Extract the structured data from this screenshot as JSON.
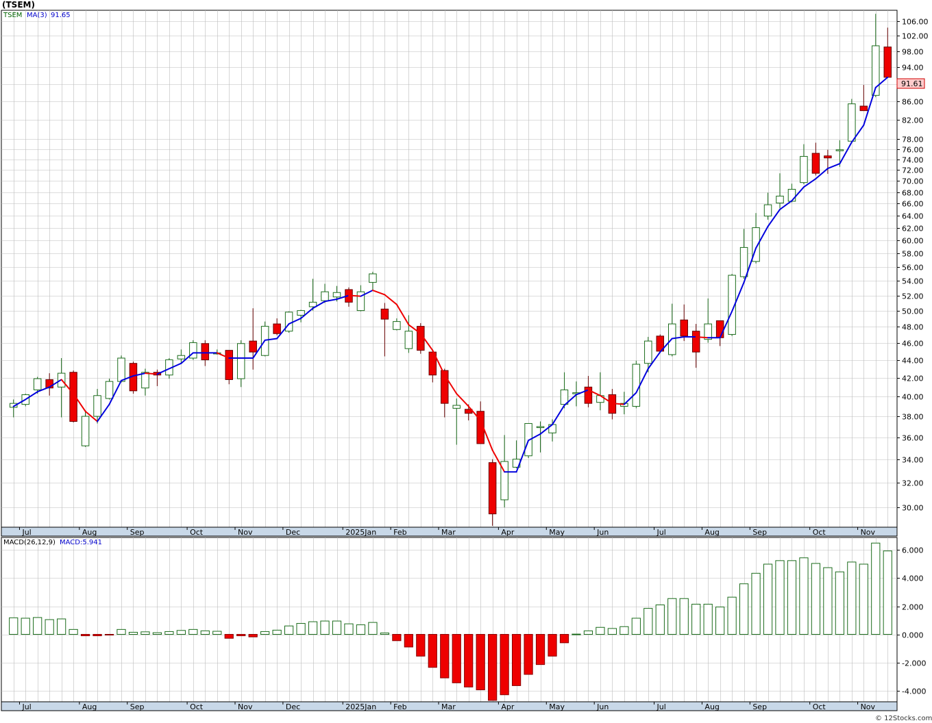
{
  "header": {
    "title": "(TSEM)",
    "price_legend_symbol": "TSEM",
    "price_legend_ma": "MA(3)",
    "price_legend_ma_value": "91.65",
    "macd_legend_name": "MACD(26,12,9)",
    "macd_legend_value": "MACD:5.941",
    "last_price_badge": "91.61",
    "watermark": "© 12Stocks.com"
  },
  "colors": {
    "up_body": "#ffffff",
    "up_border": "#1a6b1a",
    "down_body": "#ee0000",
    "ma_up": "#0000dd",
    "ma_down": "#ee0000",
    "grid": "#bbbbbb",
    "axis_band": "#c8d8e8",
    "badge_bg": "#ffcccc",
    "legend_symbol": "#006400",
    "legend_ma": "#0000cc"
  },
  "chart_data": [
    {
      "type": "candlestick",
      "title": "(TSEM)",
      "frequency": "weekly",
      "scale": "log",
      "ylim": [
        28.5,
        109
      ],
      "y_ticks": [
        30,
        32,
        34,
        36,
        38,
        40,
        42,
        44,
        46,
        48,
        50,
        52,
        54,
        56,
        58,
        60,
        62,
        64,
        66,
        68,
        70,
        72,
        74,
        76,
        78,
        82,
        86,
        90,
        94,
        98,
        102,
        106
      ],
      "y_tick_labels": [
        "30.00",
        "32.00",
        "34.00",
        "36.00",
        "38.00",
        "40.00",
        "42.00",
        "44.00",
        "46.00",
        "48.00",
        "50.00",
        "52.00",
        "54.00",
        "56.00",
        "58.00",
        "60.00",
        "62.00",
        "64.00",
        "66.00",
        "68.00",
        "70.00",
        "72.00",
        "74.00",
        "76.00",
        "78.00",
        "82.00",
        "86.00",
        "90.00",
        "94.00",
        "98.00",
        "102.00",
        "106.00"
      ],
      "x_labels": [
        {
          "label": "Jul",
          "index": 1
        },
        {
          "label": "Aug",
          "index": 6
        },
        {
          "label": "Sep",
          "index": 10
        },
        {
          "label": "Oct",
          "index": 15
        },
        {
          "label": "Nov",
          "index": 19
        },
        {
          "label": "Dec",
          "index": 23
        },
        {
          "label": "2025Jan",
          "index": 28
        },
        {
          "label": "Feb",
          "index": 32
        },
        {
          "label": "Mar",
          "index": 36
        },
        {
          "label": "Apr",
          "index": 41
        },
        {
          "label": "May",
          "index": 45
        },
        {
          "label": "Jun",
          "index": 49
        },
        {
          "label": "Jul",
          "index": 54
        },
        {
          "label": "Aug",
          "index": 58
        },
        {
          "label": "Sep",
          "index": 62
        },
        {
          "label": "Oct",
          "index": 67
        },
        {
          "label": "Nov",
          "index": 71
        }
      ],
      "series_ohlc": [
        {
          "o": 38.9,
          "h": 39.7,
          "l": 37.9,
          "c": 39.3
        },
        {
          "o": 39.2,
          "h": 40.3,
          "l": 39.0,
          "c": 40.2
        },
        {
          "o": 40.7,
          "h": 42.1,
          "l": 40.3,
          "c": 41.9
        },
        {
          "o": 41.8,
          "h": 42.5,
          "l": 40.1,
          "c": 40.9
        },
        {
          "o": 41.0,
          "h": 44.2,
          "l": 37.9,
          "c": 42.5
        },
        {
          "o": 42.6,
          "h": 42.8,
          "l": 37.4,
          "c": 37.5
        },
        {
          "o": 35.2,
          "h": 38.6,
          "l": 35.1,
          "c": 38.0
        },
        {
          "o": 38.0,
          "h": 40.8,
          "l": 37.3,
          "c": 40.1
        },
        {
          "o": 39.8,
          "h": 41.9,
          "l": 39.7,
          "c": 41.6
        },
        {
          "o": 41.6,
          "h": 44.5,
          "l": 41.5,
          "c": 44.2
        },
        {
          "o": 43.6,
          "h": 43.8,
          "l": 40.3,
          "c": 40.6
        },
        {
          "o": 40.9,
          "h": 43.0,
          "l": 40.1,
          "c": 42.6
        },
        {
          "o": 42.6,
          "h": 42.9,
          "l": 41.1,
          "c": 42.3
        },
        {
          "o": 42.3,
          "h": 44.2,
          "l": 41.9,
          "c": 44.0
        },
        {
          "o": 44.1,
          "h": 45.2,
          "l": 43.6,
          "c": 44.5
        },
        {
          "o": 44.2,
          "h": 46.3,
          "l": 44.0,
          "c": 46.0
        },
        {
          "o": 45.9,
          "h": 46.3,
          "l": 43.3,
          "c": 44.0
        },
        {
          "o": 44.8,
          "h": 45.2,
          "l": 44.6,
          "c": 44.8
        },
        {
          "o": 45.1,
          "h": 45.1,
          "l": 41.3,
          "c": 41.8
        },
        {
          "o": 41.9,
          "h": 46.3,
          "l": 41.0,
          "c": 45.9
        },
        {
          "o": 46.2,
          "h": 50.3,
          "l": 42.9,
          "c": 44.9
        },
        {
          "o": 44.5,
          "h": 48.6,
          "l": 44.4,
          "c": 48.0
        },
        {
          "o": 48.3,
          "h": 49.0,
          "l": 46.9,
          "c": 47.1
        },
        {
          "o": 47.4,
          "h": 49.9,
          "l": 47.2,
          "c": 49.8
        },
        {
          "o": 49.4,
          "h": 50.1,
          "l": 48.5,
          "c": 50.0
        },
        {
          "o": 50.5,
          "h": 54.3,
          "l": 50.0,
          "c": 51.1
        },
        {
          "o": 51.3,
          "h": 53.6,
          "l": 51.0,
          "c": 52.5
        },
        {
          "o": 51.8,
          "h": 53.3,
          "l": 51.2,
          "c": 52.4
        },
        {
          "o": 52.8,
          "h": 53.1,
          "l": 50.5,
          "c": 51.1
        },
        {
          "o": 50.0,
          "h": 53.4,
          "l": 49.9,
          "c": 52.5
        },
        {
          "o": 53.8,
          "h": 55.3,
          "l": 52.7,
          "c": 55.0
        },
        {
          "o": 50.2,
          "h": 51.0,
          "l": 44.4,
          "c": 48.9
        },
        {
          "o": 47.6,
          "h": 49.0,
          "l": 47.5,
          "c": 48.6
        },
        {
          "o": 45.3,
          "h": 49.4,
          "l": 44.8,
          "c": 47.4
        },
        {
          "o": 48.0,
          "h": 48.4,
          "l": 44.7,
          "c": 45.1
        },
        {
          "o": 44.9,
          "h": 45.0,
          "l": 41.5,
          "c": 42.3
        },
        {
          "o": 42.8,
          "h": 43.0,
          "l": 37.9,
          "c": 39.3
        },
        {
          "o": 38.8,
          "h": 39.8,
          "l": 35.3,
          "c": 39.1
        },
        {
          "o": 38.7,
          "h": 39.2,
          "l": 37.6,
          "c": 38.3
        },
        {
          "o": 38.5,
          "h": 39.5,
          "l": 35.4,
          "c": 35.4
        },
        {
          "o": 33.7,
          "h": 34.0,
          "l": 28.6,
          "c": 29.5
        },
        {
          "o": 30.6,
          "h": 36.2,
          "l": 30.0,
          "c": 33.8
        },
        {
          "o": 33.3,
          "h": 35.7,
          "l": 33.2,
          "c": 34.0
        },
        {
          "o": 34.3,
          "h": 37.3,
          "l": 34.1,
          "c": 37.3
        },
        {
          "o": 37.0,
          "h": 37.5,
          "l": 34.6,
          "c": 37.0
        },
        {
          "o": 36.4,
          "h": 37.7,
          "l": 35.6,
          "c": 37.2
        },
        {
          "o": 39.2,
          "h": 42.6,
          "l": 38.8,
          "c": 40.7
        },
        {
          "o": 40.4,
          "h": 41.6,
          "l": 39.0,
          "c": 40.4
        },
        {
          "o": 41.0,
          "h": 42.2,
          "l": 38.9,
          "c": 39.3
        },
        {
          "o": 39.4,
          "h": 42.6,
          "l": 38.6,
          "c": 40.1
        },
        {
          "o": 40.2,
          "h": 40.8,
          "l": 37.7,
          "c": 38.3
        },
        {
          "o": 39.0,
          "h": 40.5,
          "l": 38.2,
          "c": 39.3
        },
        {
          "o": 39.0,
          "h": 43.9,
          "l": 38.8,
          "c": 43.5
        },
        {
          "o": 43.6,
          "h": 46.7,
          "l": 42.6,
          "c": 46.2
        },
        {
          "o": 46.8,
          "h": 47.0,
          "l": 44.8,
          "c": 45.0
        },
        {
          "o": 44.6,
          "h": 50.9,
          "l": 44.4,
          "c": 48.3
        },
        {
          "o": 48.8,
          "h": 50.8,
          "l": 46.2,
          "c": 46.8
        },
        {
          "o": 47.4,
          "h": 48.3,
          "l": 43.1,
          "c": 44.9
        },
        {
          "o": 46.4,
          "h": 51.6,
          "l": 46.0,
          "c": 48.3
        },
        {
          "o": 48.7,
          "h": 48.7,
          "l": 45.6,
          "c": 46.6
        },
        {
          "o": 47.0,
          "h": 55.0,
          "l": 46.8,
          "c": 54.8
        },
        {
          "o": 54.6,
          "h": 61.8,
          "l": 54.3,
          "c": 58.9
        },
        {
          "o": 56.8,
          "h": 64.4,
          "l": 56.5,
          "c": 62.0
        },
        {
          "o": 63.9,
          "h": 67.9,
          "l": 63.3,
          "c": 65.8
        },
        {
          "o": 66.1,
          "h": 71.4,
          "l": 65.2,
          "c": 67.3
        },
        {
          "o": 66.4,
          "h": 69.5,
          "l": 66.2,
          "c": 68.5
        },
        {
          "o": 69.7,
          "h": 77.0,
          "l": 69.4,
          "c": 74.6
        },
        {
          "o": 75.2,
          "h": 77.3,
          "l": 71.0,
          "c": 71.4
        },
        {
          "o": 74.7,
          "h": 75.9,
          "l": 71.3,
          "c": 74.3
        },
        {
          "o": 75.8,
          "h": 77.8,
          "l": 72.6,
          "c": 75.9
        },
        {
          "o": 77.6,
          "h": 86.6,
          "l": 77.2,
          "c": 85.5
        },
        {
          "o": 85.0,
          "h": 89.8,
          "l": 84.1,
          "c": 84.0
        },
        {
          "o": 87.4,
          "h": 108.0,
          "l": 87.0,
          "c": 99.4
        },
        {
          "o": 99.1,
          "h": 104.2,
          "l": 91.5,
          "c": 91.6
        }
      ],
      "ma3": [
        39.0,
        39.7,
        40.5,
        41.0,
        41.8,
        40.3,
        38.5,
        37.5,
        39.2,
        41.7,
        42.2,
        42.5,
        42.4,
        43.0,
        43.6,
        44.8,
        44.8,
        44.8,
        44.2,
        44.2,
        44.2,
        46.3,
        46.5,
        48.3,
        49.0,
        50.3,
        51.2,
        51.5,
        52.0,
        51.9,
        52.7,
        52.1,
        50.8,
        48.2,
        47.1,
        45.1,
        42.3,
        40.3,
        39.0,
        37.6,
        34.8,
        32.9,
        32.9,
        35.7,
        36.3,
        37.2,
        39.1,
        40.2,
        40.7,
        40.1,
        39.3,
        39.2,
        40.4,
        43.0,
        44.9,
        46.5,
        46.7,
        46.7,
        46.6,
        46.6,
        49.9,
        53.8,
        58.8,
        62.2,
        65.0,
        66.5,
        68.9,
        70.4,
        72.3,
        73.2,
        77.4,
        80.9,
        89.2,
        91.6
      ]
    },
    {
      "type": "bar",
      "title": "MACD(26,12,9)",
      "ylim": [
        -4.8,
        6.9
      ],
      "y_ticks": [
        -4,
        -2,
        0,
        2,
        4,
        6
      ],
      "y_tick_labels": [
        "-4.000",
        "-2.000",
        "0.000",
        "2.000",
        "4.000",
        "6.000"
      ],
      "values": [
        1.18,
        1.15,
        1.2,
        1.05,
        1.1,
        0.35,
        -0.1,
        -0.1,
        -0.05,
        0.35,
        0.15,
        0.18,
        0.12,
        0.2,
        0.28,
        0.35,
        0.25,
        0.22,
        -0.28,
        -0.1,
        -0.18,
        0.2,
        0.3,
        0.6,
        0.78,
        0.9,
        0.95,
        0.95,
        0.75,
        0.68,
        0.85,
        0.1,
        -0.45,
        -0.9,
        -1.55,
        -2.35,
        -3.1,
        -3.45,
        -3.75,
        -3.95,
        -4.7,
        -4.3,
        -3.65,
        -2.85,
        -2.15,
        -1.55,
        -0.6,
        0.02,
        0.25,
        0.5,
        0.42,
        0.55,
        1.15,
        1.85,
        2.1,
        2.55,
        2.55,
        2.15,
        2.15,
        1.95,
        2.65,
        3.6,
        4.35,
        5.0,
        5.25,
        5.25,
        5.45,
        5.05,
        4.75,
        4.45,
        5.15,
        5.0,
        6.5,
        5.94
      ]
    }
  ]
}
